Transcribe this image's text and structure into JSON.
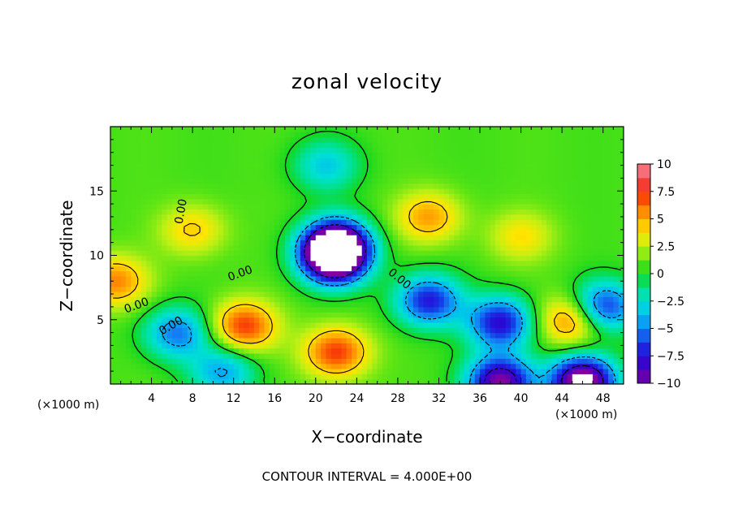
{
  "chart_data": {
    "type": "heatmap",
    "title": "zonal velocity",
    "xlabel": "X−coordinate",
    "ylabel": "Z−coordinate",
    "x_unit_left": "(×1000 m)",
    "x_unit_right": "(×1000 m)",
    "xlim": [
      0,
      50
    ],
    "ylim": [
      0,
      20
    ],
    "x_ticks": [
      4,
      8,
      12,
      16,
      20,
      24,
      28,
      32,
      36,
      40,
      44,
      48
    ],
    "y_ticks": [
      5,
      10,
      15
    ],
    "x_tick_labels": [
      "4",
      "8",
      "12",
      "16",
      "20",
      "24",
      "28",
      "32",
      "36",
      "40",
      "44",
      "48"
    ],
    "y_tick_labels": [
      "5",
      "10",
      "15"
    ],
    "colorbar": {
      "min": -10,
      "max": 10,
      "ticks": [
        10,
        7.5,
        5,
        2.5,
        0,
        -2.5,
        -5,
        -7.5,
        -10
      ],
      "tick_labels": [
        "10",
        "7.5",
        "5",
        "2.5",
        "0",
        "−2.5",
        "−5",
        "−7.5",
        "−10"
      ]
    },
    "contour_interval_label": "CONTOUR INTERVAL = 4.000E+00",
    "contour_labels": [
      "0.00",
      "0.00",
      "0.00",
      "0.00",
      "0.00"
    ],
    "features": [
      {
        "x": 22,
        "z": 11,
        "value": -10
      },
      {
        "x": 21.8,
        "z": 9.8,
        "value": -13
      },
      {
        "x": 13,
        "z": 4.5,
        "value": 6.5
      },
      {
        "x": 22,
        "z": 2.5,
        "value": 6.5
      },
      {
        "x": 31,
        "z": 13,
        "value": 4.5
      },
      {
        "x": 31,
        "z": 6.5,
        "value": -8
      },
      {
        "x": 38,
        "z": 4.8,
        "value": -8.5
      },
      {
        "x": 45,
        "z": 5,
        "value": 6
      },
      {
        "x": 6.5,
        "z": 4,
        "value": -6
      },
      {
        "x": 8,
        "z": 12,
        "value": 3.5
      },
      {
        "x": 48,
        "z": 6,
        "value": -8
      },
      {
        "x": 46,
        "z": 0.2,
        "value": -13
      },
      {
        "x": 38,
        "z": 0.2,
        "value": -11
      },
      {
        "x": 0.5,
        "z": 8,
        "value": 5
      },
      {
        "x": 21,
        "z": 17,
        "value": -4
      },
      {
        "x": 11,
        "z": 1,
        "value": -5
      },
      {
        "x": 40,
        "z": 11.5,
        "value": 3
      }
    ]
  }
}
